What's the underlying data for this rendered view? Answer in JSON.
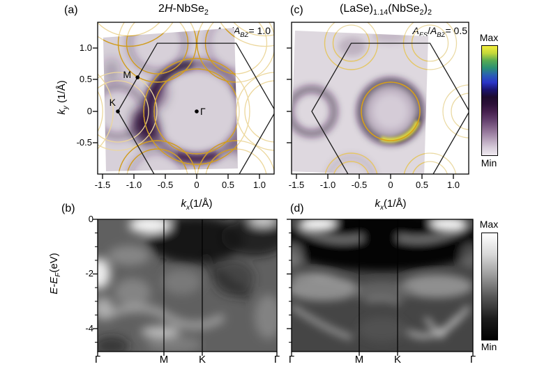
{
  "palette": {
    "background": "#ffffff",
    "frame": "#000000",
    "contour_orange": "#cf9b1f",
    "contour_orange_pale": "#ecd79c",
    "map_patch_a": "#d7d0d9",
    "map_patch_c": "#ded8df",
    "map_dark_purple": "#23062e",
    "highlight_yellow": "#e9e73f"
  },
  "colorbar_spectral": {
    "max_label": "Max",
    "min_label": "Min",
    "stops": [
      "#f2ee3c",
      "#c4d83a",
      "#58ab52",
      "#2b9173",
      "#2a5fb4",
      "#2a35c8",
      "#1b1470",
      "#1d0b2e",
      "#2c1038",
      "#45204e",
      "#5e3a68",
      "#7d5c84",
      "#9c80a2",
      "#bba7bf",
      "#d8cddb",
      "#efeaf0"
    ]
  },
  "colorbar_gray": {
    "max_label": "Max",
    "min_label": "Min",
    "stops": [
      "#ffffff",
      "#d8d8d8",
      "#9a9a9a",
      "#555555",
      "#1c1c1c",
      "#000000"
    ]
  },
  "panel_a": {
    "label": "(a)",
    "title_runs": [
      {
        "t": "2"
      },
      {
        "t": "H",
        "i": true
      },
      {
        "t": "-NbSe"
      },
      {
        "t": "2",
        "sub": true
      }
    ],
    "annotation_runs": [
      {
        "t": "A",
        "i": true
      },
      {
        "t": "FS",
        "i": true,
        "sub": true
      },
      {
        "t": "/"
      },
      {
        "t": "A",
        "i": true
      },
      {
        "t": "BZ",
        "i": true,
        "sub": true
      },
      {
        "t": "= 1.0"
      }
    ],
    "x_ticks": [
      "-1.5",
      "-1.0",
      "-0.5",
      "0",
      "0.5",
      "1.0"
    ],
    "y_ticks": [
      "1.0",
      "0.5",
      "0",
      "-0.5"
    ],
    "xlabel_runs": [
      {
        "t": "k",
        "i": true
      },
      {
        "t": "x",
        "i": true,
        "sub": true
      },
      {
        "t": "(1/Å)"
      }
    ],
    "ylabel_runs": [
      {
        "t": "k",
        "i": true
      },
      {
        "t": "y",
        "i": true,
        "sub": true
      },
      {
        "t": " (1/Å)"
      }
    ],
    "points": {
      "gamma": "Γ",
      "m": "M",
      "k": "K"
    }
  },
  "panel_c": {
    "label": "(c)",
    "title_runs": [
      {
        "t": "(LaSe)"
      },
      {
        "t": "1.14",
        "sub": true
      },
      {
        "t": "(NbSe"
      },
      {
        "t": "2",
        "sub": true
      },
      {
        "t": ")"
      },
      {
        "t": "2",
        "sub": true
      }
    ],
    "annotation_runs": [
      {
        "t": "A",
        "i": true
      },
      {
        "t": "FS",
        "i": true,
        "sub": true
      },
      {
        "t": "/"
      },
      {
        "t": "A",
        "i": true
      },
      {
        "t": "BZ",
        "i": true,
        "sub": true
      },
      {
        "t": "= 0.5"
      }
    ],
    "x_ticks": [
      "-1.5",
      "-1.0",
      "-0.5",
      "0",
      "0.5",
      "1.0"
    ],
    "xlabel_runs": [
      {
        "t": "k",
        "i": true
      },
      {
        "t": "x",
        "i": true,
        "sub": true
      },
      {
        "t": "(1/Å)"
      }
    ]
  },
  "panel_b": {
    "label": "(b)",
    "y_ticks": [
      "0",
      "-2",
      "-4"
    ],
    "ylabel_runs": [
      {
        "t": "E-E",
        "i": true
      },
      {
        "t": "F",
        "i": true,
        "sub": true
      },
      {
        "t": "(eV)"
      }
    ],
    "path_labels": [
      "Γ",
      "M",
      "K",
      "Γ"
    ]
  },
  "panel_d": {
    "label": "(d)",
    "path_labels": [
      "Γ",
      "M",
      "K",
      "Γ"
    ]
  },
  "chart_data": [
    {
      "id": "a",
      "type": "heatmap",
      "subject": "ARPES Fermi-surface map",
      "title": "2H-NbSe2",
      "xlabel": "kx (1/Å)",
      "ylabel": "ky (1/Å)",
      "xlim": [
        -1.55,
        1.25
      ],
      "ylim": [
        -0.97,
        1.42
      ],
      "x_ticks": [
        -1.5,
        -1.0,
        -0.5,
        0,
        0.5,
        1.0
      ],
      "y_ticks": [
        1.0,
        0.5,
        0,
        -0.5
      ],
      "annotation": "AFS/ABZ = 1.0",
      "high_symmetry_points": {
        "Gamma": [
          0,
          0
        ],
        "M": [
          -0.87,
          0.5
        ],
        "K": [
          -1.18,
          0
        ]
      },
      "brillouin_zone": "hexagon, corner radius 1.18 1/Å, corners clipped at bottom axis",
      "gamma_contour_radii_invA": [
        0.66,
        0.82
      ],
      "corner_contour_radii_invA": [
        0.48,
        0.6
      ],
      "colormap": "Min light lavender-gray to dark purple to blue/green/yellow Max",
      "grid": false
    },
    {
      "id": "c",
      "type": "heatmap",
      "subject": "ARPES Fermi-surface map",
      "title": "(LaSe)1.14(NbSe2)2",
      "xlabel": "kx (1/Å)",
      "ylabel": "ky (1/Å), shared with panel a",
      "xlim": [
        -1.55,
        1.25
      ],
      "ylim": [
        -0.97,
        1.42
      ],
      "x_ticks": [
        -1.5,
        -1.0,
        -0.5,
        0,
        0.5,
        1.0
      ],
      "annotation": "AFS/ABZ = 0.5",
      "gamma_ring_radius_invA": 0.45,
      "features": "single orange Gamma circle with bright yellow arc at bottom, dark ring at K on left, pale triangular contours at BZ corners",
      "grid": false
    },
    {
      "id": "b",
      "type": "heatmap",
      "subject": "ARPES band map along high-symmetry path",
      "ylabel": "E-EF (eV)",
      "ylim": [
        -4.8,
        0
      ],
      "y_ticks": [
        0,
        -2,
        -4
      ],
      "y_minor_tick_step": 0.5,
      "x_path": [
        "Γ",
        "M",
        "K",
        "Γ"
      ],
      "colormap": "grayscale, Min black to Max white",
      "grid": false
    },
    {
      "id": "d",
      "type": "heatmap",
      "subject": "ARPES band map along high-symmetry path",
      "ylabel": "E-EF (eV), shared with panel b",
      "ylim": [
        -4.8,
        0
      ],
      "y_ticks": [
        0,
        -2,
        -4
      ],
      "x_path": [
        "Γ",
        "M",
        "K",
        "Γ"
      ],
      "colormap": "grayscale, Min black to Max white",
      "grid": false
    }
  ]
}
